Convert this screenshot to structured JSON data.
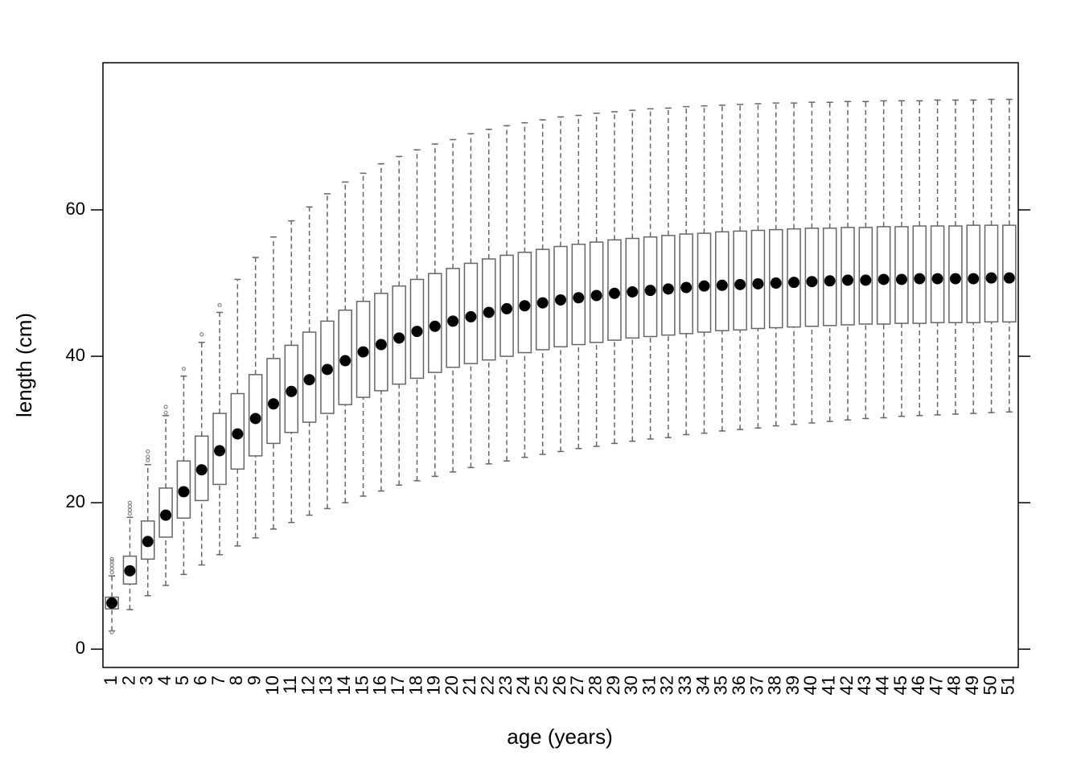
{
  "chart_data": {
    "type": "box",
    "x_label": "age (years)",
    "y_label": "length (cm)",
    "categories": [
      "1",
      "2",
      "3",
      "4",
      "5",
      "6",
      "7",
      "8",
      "9",
      "10",
      "11",
      "12",
      "13",
      "14",
      "15",
      "16",
      "17",
      "18",
      "19",
      "20",
      "21",
      "22",
      "23",
      "24",
      "25",
      "26",
      "27",
      "28",
      "29",
      "30",
      "31",
      "32",
      "33",
      "34",
      "35",
      "36",
      "37",
      "38",
      "39",
      "40",
      "41",
      "42",
      "43",
      "44",
      "45",
      "46",
      "47",
      "48",
      "49",
      "50",
      "51"
    ],
    "whislo": [
      2.5,
      5.4,
      7.3,
      8.7,
      10.2,
      11.5,
      12.9,
      14.1,
      15.2,
      16.4,
      17.3,
      18.3,
      19.2,
      20.0,
      20.9,
      21.6,
      22.4,
      23.0,
      23.6,
      24.2,
      24.8,
      25.3,
      25.7,
      26.2,
      26.6,
      27.0,
      27.4,
      27.7,
      28.1,
      28.4,
      28.7,
      28.9,
      29.3,
      29.5,
      29.8,
      30.0,
      30.2,
      30.5,
      30.7,
      30.9,
      31.1,
      31.3,
      31.5,
      31.6,
      31.8,
      31.9,
      32.0,
      32.1,
      32.2,
      32.3,
      32.4
    ],
    "q1": [
      5.5,
      8.9,
      12.3,
      15.3,
      17.9,
      20.3,
      22.5,
      24.6,
      26.4,
      28.1,
      29.6,
      31.0,
      32.2,
      33.4,
      34.4,
      35.3,
      36.2,
      37.0,
      37.8,
      38.5,
      39.0,
      39.5,
      40.0,
      40.5,
      40.9,
      41.3,
      41.6,
      41.9,
      42.2,
      42.5,
      42.7,
      42.9,
      43.1,
      43.3,
      43.5,
      43.6,
      43.8,
      43.9,
      44.0,
      44.1,
      44.2,
      44.3,
      44.4,
      44.4,
      44.5,
      44.5,
      44.6,
      44.6,
      44.6,
      44.7,
      44.7
    ],
    "med": [
      6.3,
      10.7,
      14.7,
      18.3,
      21.5,
      24.5,
      27.1,
      29.4,
      31.5,
      33.5,
      35.2,
      36.8,
      38.2,
      39.4,
      40.6,
      41.6,
      42.5,
      43.4,
      44.1,
      44.8,
      45.4,
      46.0,
      46.5,
      46.9,
      47.3,
      47.7,
      48.0,
      48.3,
      48.6,
      48.8,
      49.0,
      49.2,
      49.4,
      49.6,
      49.7,
      49.8,
      49.9,
      50.0,
      50.1,
      50.2,
      50.3,
      50.4,
      50.4,
      50.5,
      50.5,
      50.6,
      50.6,
      50.6,
      50.6,
      50.7,
      50.7
    ],
    "q3": [
      7.1,
      12.7,
      17.5,
      22.0,
      25.7,
      29.1,
      32.2,
      34.9,
      37.5,
      39.7,
      41.5,
      43.3,
      44.8,
      46.3,
      47.5,
      48.6,
      49.6,
      50.5,
      51.3,
      52.0,
      52.7,
      53.3,
      53.8,
      54.2,
      54.6,
      55.0,
      55.3,
      55.6,
      55.9,
      56.1,
      56.3,
      56.5,
      56.7,
      56.8,
      57.0,
      57.1,
      57.2,
      57.3,
      57.4,
      57.5,
      57.5,
      57.6,
      57.6,
      57.7,
      57.7,
      57.8,
      57.8,
      57.8,
      57.9,
      57.9,
      57.9
    ],
    "whishi": [
      10.0,
      18.0,
      25.2,
      31.9,
      37.3,
      41.9,
      46.0,
      50.5,
      53.5,
      56.3,
      58.5,
      60.4,
      62.2,
      63.8,
      65.0,
      66.3,
      67.3,
      68.2,
      69.0,
      69.6,
      70.4,
      71.0,
      71.5,
      71.9,
      72.3,
      72.7,
      72.9,
      73.2,
      73.4,
      73.6,
      73.8,
      73.9,
      74.1,
      74.2,
      74.3,
      74.4,
      74.5,
      74.6,
      74.6,
      74.7,
      74.7,
      74.8,
      74.8,
      74.9,
      74.9,
      74.9,
      75.0,
      75.0,
      75.0,
      75.1,
      75.1
    ],
    "outliers": [
      [
        2.3,
        10.5,
        11.0,
        11.5,
        12.0,
        12.3
      ],
      [
        18.5,
        19.0,
        19.5,
        20.0
      ],
      [
        25.8,
        26.3,
        27.0
      ],
      [
        32.3,
        33.1
      ],
      [
        38.3
      ],
      [
        43.0
      ],
      [
        47.0
      ],
      [],
      [],
      [],
      [],
      [],
      [],
      [],
      [],
      [],
      [],
      [],
      [],
      [],
      [],
      [],
      [],
      [],
      [],
      [],
      [],
      [],
      [],
      [],
      [],
      [],
      [],
      [],
      [],
      [],
      [],
      [],
      [],
      [],
      [],
      [],
      [],
      [],
      [],
      [],
      [],
      [],
      [],
      [],
      []
    ],
    "box_color": "#666666",
    "median_color": "#000000",
    "ylim": [
      -2.5,
      80.1
    ],
    "yticks": [
      0,
      20,
      40,
      60
    ]
  }
}
